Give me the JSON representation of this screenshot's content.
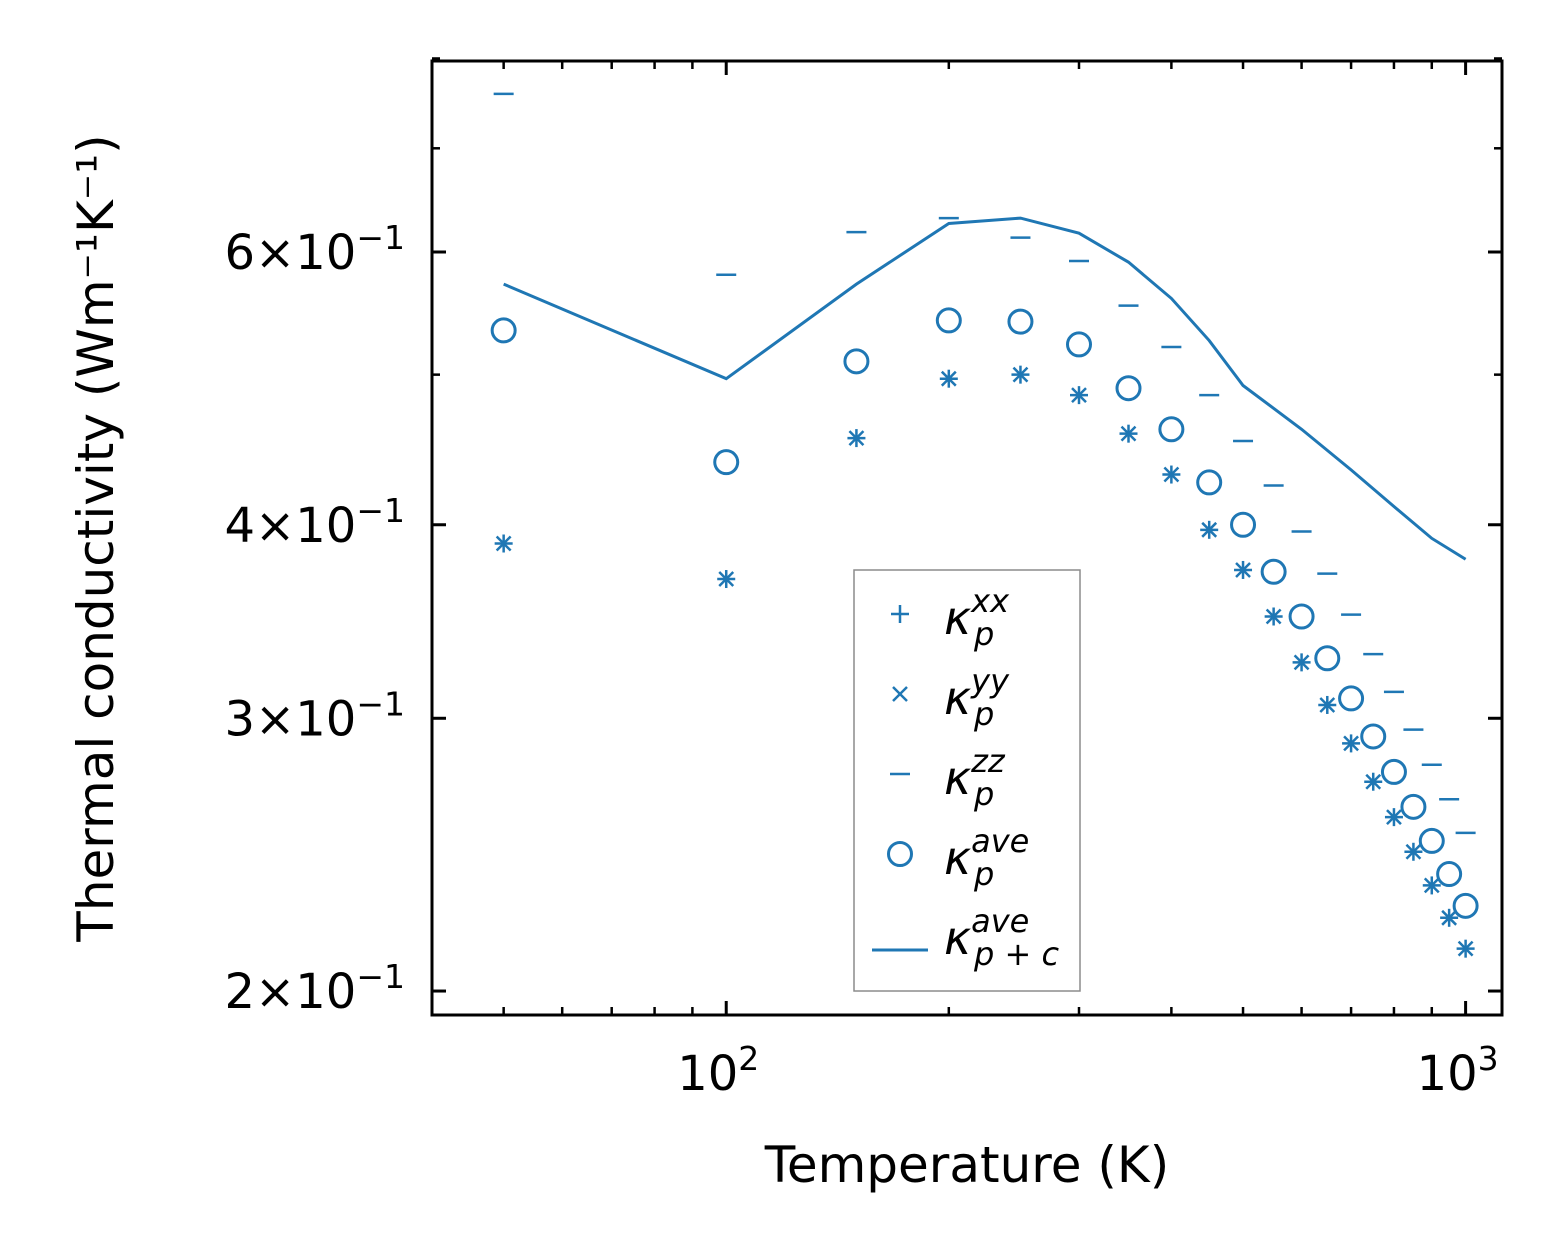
{
  "chart_data": {
    "type": "scatter",
    "x_scale": "log",
    "y_scale": "log",
    "xlabel": "Temperature (K)",
    "ylabel": "Thermal conductivity (Wm⁻¹K⁻¹)",
    "xlim": [
      40,
      1120
    ],
    "ylim": [
      0.193,
      0.797
    ],
    "x_ticks": [
      {
        "value": 100,
        "base": "10",
        "exp": "2"
      },
      {
        "value": 1000,
        "base": "10",
        "exp": "3"
      }
    ],
    "y_ticks": [
      {
        "value": 0.2,
        "mantissa": "2",
        "base": "10",
        "exp": "−1"
      },
      {
        "value": 0.3,
        "mantissa": "3",
        "base": "10",
        "exp": "−1"
      },
      {
        "value": 0.4,
        "mantissa": "4",
        "base": "10",
        "exp": "−1"
      },
      {
        "value": 0.6,
        "mantissa": "6",
        "base": "10",
        "exp": "−1"
      }
    ],
    "x_minor_ticks": [
      50,
      60,
      70,
      80,
      90,
      200,
      300,
      400,
      500,
      600,
      700,
      800,
      900
    ],
    "y_minor_ticks": [
      0.5,
      0.7,
      0.8
    ],
    "color": "#1f77b4",
    "legend": {
      "position": "lower-center",
      "entries": [
        {
          "marker": "plus",
          "symbol": "κ",
          "sub": "p",
          "sup": "xx"
        },
        {
          "marker": "x",
          "symbol": "κ",
          "sub": "p",
          "sup": "yy"
        },
        {
          "marker": "hline",
          "symbol": "κ",
          "sub": "p",
          "sup": "zz"
        },
        {
          "marker": "circle",
          "symbol": "κ",
          "sub": "p",
          "sup": "ave"
        },
        {
          "marker": "line",
          "symbol": "κ",
          "sub": "p + c",
          "sup": "ave"
        }
      ]
    },
    "x": [
      50,
      100,
      150,
      200,
      250,
      300,
      350,
      400,
      450,
      500,
      550,
      600,
      650,
      700,
      750,
      800,
      850,
      900,
      950,
      1000
    ],
    "series": [
      {
        "name": "κ_p^xx",
        "marker": "plus",
        "values": [
          0.389,
          0.369,
          0.455,
          0.497,
          0.5,
          0.485,
          0.458,
          0.431,
          0.397,
          0.374,
          0.349,
          0.326,
          0.306,
          0.289,
          0.273,
          0.259,
          0.246,
          0.234,
          0.223,
          0.213
        ]
      },
      {
        "name": "κ_p^yy",
        "marker": "x",
        "values": [
          0.389,
          0.369,
          0.455,
          0.497,
          0.5,
          0.485,
          0.458,
          0.431,
          0.397,
          0.374,
          0.349,
          0.326,
          0.306,
          0.289,
          0.273,
          0.259,
          0.246,
          0.234,
          0.223,
          0.213
        ]
      },
      {
        "name": "κ_p^zz",
        "marker": "hline",
        "values": [
          0.759,
          0.58,
          0.618,
          0.631,
          0.613,
          0.592,
          0.554,
          0.521,
          0.485,
          0.453,
          0.424,
          0.396,
          0.372,
          0.35,
          0.33,
          0.312,
          0.295,
          0.28,
          0.266,
          0.253
        ]
      },
      {
        "name": "κ_p^ave",
        "marker": "circle",
        "values": [
          0.534,
          0.439,
          0.51,
          0.542,
          0.541,
          0.523,
          0.49,
          0.461,
          0.426,
          0.4,
          0.373,
          0.349,
          0.328,
          0.309,
          0.292,
          0.277,
          0.263,
          0.25,
          0.238,
          0.227
        ]
      },
      {
        "name": "κ_p+c^ave",
        "marker": "line",
        "values": [
          0.572,
          0.497,
          0.572,
          0.626,
          0.631,
          0.617,
          0.591,
          0.56,
          0.526,
          0.492,
          0.461,
          0.434,
          0.411,
          0.392,
          0.38
        ]
      }
    ],
    "line_x": [
      50,
      100,
      150,
      200,
      250,
      300,
      350,
      400,
      450,
      500,
      600,
      700,
      800,
      900,
      1000
    ]
  }
}
